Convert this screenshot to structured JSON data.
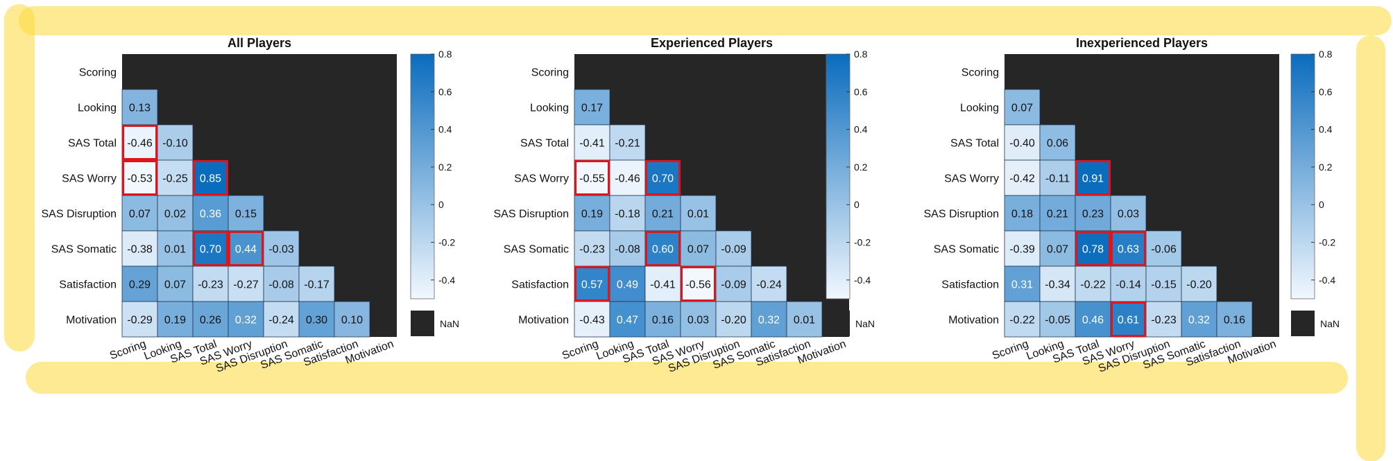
{
  "nan_label": "NaN",
  "chart_data": [
    {
      "type": "heatmap",
      "title": "All Players",
      "labels": [
        "Scoring",
        "Looking",
        "SAS Total",
        "SAS Worry",
        "SAS Disruption",
        "SAS Somatic",
        "Satisfaction",
        "Motivation"
      ],
      "values": [
        [
          null,
          null,
          null,
          null,
          null,
          null,
          null,
          null
        ],
        [
          0.13,
          null,
          null,
          null,
          null,
          null,
          null,
          null
        ],
        [
          -0.46,
          -0.1,
          null,
          null,
          null,
          null,
          null,
          null
        ],
        [
          -0.53,
          -0.25,
          0.85,
          null,
          null,
          null,
          null,
          null
        ],
        [
          0.07,
          0.02,
          0.36,
          0.15,
          null,
          null,
          null,
          null
        ],
        [
          -0.38,
          0.01,
          0.7,
          0.44,
          -0.03,
          null,
          null,
          null
        ],
        [
          0.29,
          0.07,
          -0.23,
          -0.27,
          -0.08,
          -0.17,
          null,
          null
        ],
        [
          -0.29,
          0.19,
          0.26,
          0.32,
          -0.24,
          0.3,
          0.1,
          null
        ]
      ],
      "highlighted": [
        [
          2,
          0
        ],
        [
          3,
          0
        ],
        [
          3,
          2
        ],
        [
          5,
          2
        ],
        [
          5,
          3
        ]
      ],
      "colorbar": {
        "range": [
          -0.5,
          0.8
        ],
        "ticks": [
          "0.8",
          "0.6",
          "0.4",
          "0.2",
          "0",
          "-0.2",
          "-0.4"
        ],
        "missing": "NaN"
      }
    },
    {
      "type": "heatmap",
      "title": "Experienced Players",
      "labels": [
        "Scoring",
        "Looking",
        "SAS Total",
        "SAS Worry",
        "SAS Disruption",
        "SAS Somatic",
        "Satisfaction",
        "Motivation"
      ],
      "values": [
        [
          null,
          null,
          null,
          null,
          null,
          null,
          null,
          null
        ],
        [
          0.17,
          null,
          null,
          null,
          null,
          null,
          null,
          null
        ],
        [
          -0.41,
          -0.21,
          null,
          null,
          null,
          null,
          null,
          null
        ],
        [
          -0.55,
          -0.46,
          0.7,
          null,
          null,
          null,
          null,
          null
        ],
        [
          0.19,
          -0.18,
          0.21,
          0.01,
          null,
          null,
          null,
          null
        ],
        [
          -0.23,
          -0.08,
          0.6,
          0.07,
          -0.09,
          null,
          null,
          null
        ],
        [
          0.57,
          0.49,
          -0.41,
          -0.56,
          -0.09,
          -0.24,
          null,
          null
        ],
        [
          -0.43,
          0.47,
          0.16,
          0.03,
          -0.2,
          0.32,
          0.01,
          null
        ]
      ],
      "highlighted": [
        [
          3,
          0
        ],
        [
          3,
          2
        ],
        [
          5,
          2
        ],
        [
          6,
          0
        ],
        [
          6,
          3
        ]
      ],
      "colorbar": {
        "range": [
          -0.5,
          0.8
        ],
        "ticks": [
          "0.8",
          "0.6",
          "0.4",
          "0.2",
          "0",
          "-0.2",
          "-0.4"
        ],
        "missing": "NaN"
      }
    },
    {
      "type": "heatmap",
      "title": "Inexperienced Players",
      "labels": [
        "Scoring",
        "Looking",
        "SAS Total",
        "SAS Worry",
        "SAS Disruption",
        "SAS Somatic",
        "Satisfaction",
        "Motivation"
      ],
      "values": [
        [
          null,
          null,
          null,
          null,
          null,
          null,
          null,
          null
        ],
        [
          0.07,
          null,
          null,
          null,
          null,
          null,
          null,
          null
        ],
        [
          -0.4,
          0.06,
          null,
          null,
          null,
          null,
          null,
          null
        ],
        [
          -0.42,
          -0.11,
          0.91,
          null,
          null,
          null,
          null,
          null
        ],
        [
          0.18,
          0.21,
          0.23,
          0.03,
          null,
          null,
          null,
          null
        ],
        [
          -0.39,
          0.07,
          0.78,
          0.63,
          -0.06,
          null,
          null,
          null
        ],
        [
          0.31,
          -0.34,
          -0.22,
          -0.14,
          -0.15,
          -0.2,
          null,
          null
        ],
        [
          -0.22,
          -0.05,
          0.46,
          0.61,
          -0.23,
          0.32,
          0.16,
          null
        ]
      ],
      "highlighted": [
        [
          3,
          2
        ],
        [
          5,
          2
        ],
        [
          5,
          3
        ],
        [
          7,
          3
        ]
      ],
      "colorbar": {
        "range": [
          -0.5,
          0.8
        ],
        "ticks": [
          "0.8",
          "0.6",
          "0.4",
          "0.2",
          "0",
          "-0.2",
          "-0.4"
        ],
        "missing": "NaN"
      }
    }
  ],
  "colors": {
    "nan": "#262626",
    "highlight": "#e0151b",
    "cell_border": "#1f3550",
    "low": "#f2f8fe",
    "high": "#0a6cbd",
    "overlay": "#fcd93a"
  }
}
